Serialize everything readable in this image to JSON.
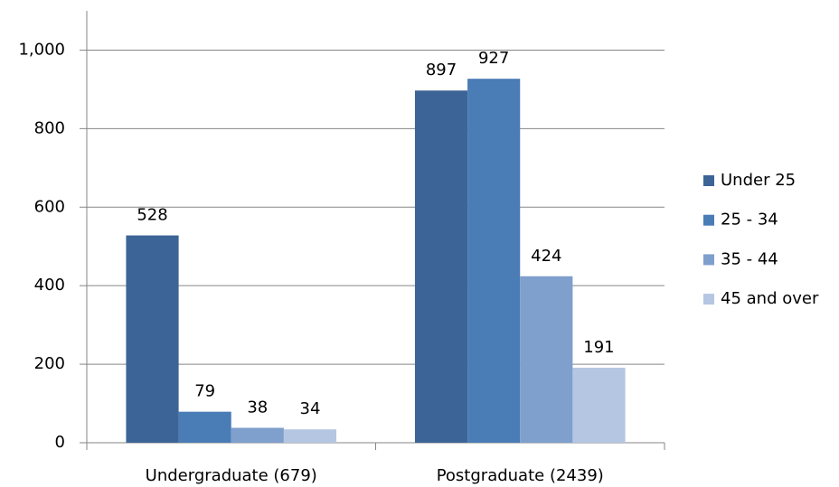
{
  "chart_data": {
    "type": "bar",
    "categories": [
      "Undergraduate (679)",
      "Postgraduate (2439)"
    ],
    "series": [
      {
        "name": "Under 25",
        "color": "#3c6496",
        "values": [
          528,
          897
        ]
      },
      {
        "name": "25 - 34",
        "color": "#4a7cb6",
        "values": [
          79,
          927
        ]
      },
      {
        "name": "35 - 44",
        "color": "#7f9fcc",
        "values": [
          38,
          424
        ]
      },
      {
        "name": "45 and over",
        "color": "#b5c6e2",
        "values": [
          34,
          191
        ]
      }
    ],
    "ylim": [
      0,
      1100
    ],
    "yticks": [
      0,
      200,
      400,
      600,
      800,
      {
        "value": 1000,
        "label": "1,000"
      }
    ],
    "grid": true,
    "legend": "right"
  }
}
